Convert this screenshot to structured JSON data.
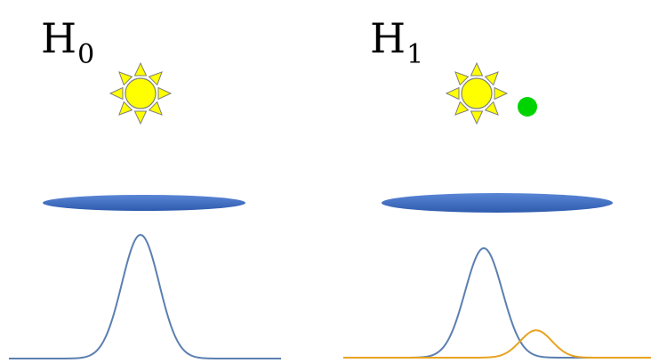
{
  "panels": [
    {
      "label": "H",
      "subscript": "0",
      "sun": {
        "icon": "sun-icon",
        "fill": "#FFFF00",
        "stroke": "#7F7F7F"
      },
      "lens": {
        "fill": "#4472C4"
      },
      "curves": [
        {
          "name": "primary-curve",
          "color": "#5B7FB0",
          "amplitude": 1.0,
          "mean": 0.0,
          "sigma": 1.0
        }
      ]
    },
    {
      "label": "H",
      "subscript": "1",
      "sun": {
        "icon": "sun-icon",
        "fill": "#FFFF00",
        "stroke": "#7F7F7F"
      },
      "companion": {
        "icon": "companion-dot-icon",
        "fill": "#00D400"
      },
      "lens": {
        "fill": "#4472C4"
      },
      "curves": [
        {
          "name": "primary-curve",
          "color": "#5B7FB0",
          "amplitude": 1.0,
          "mean": 0.0,
          "sigma": 1.0
        },
        {
          "name": "secondary-curve",
          "color": "#E8A31F",
          "amplitude": 0.25,
          "mean": 2.8,
          "sigma": 0.85
        }
      ]
    }
  ]
}
